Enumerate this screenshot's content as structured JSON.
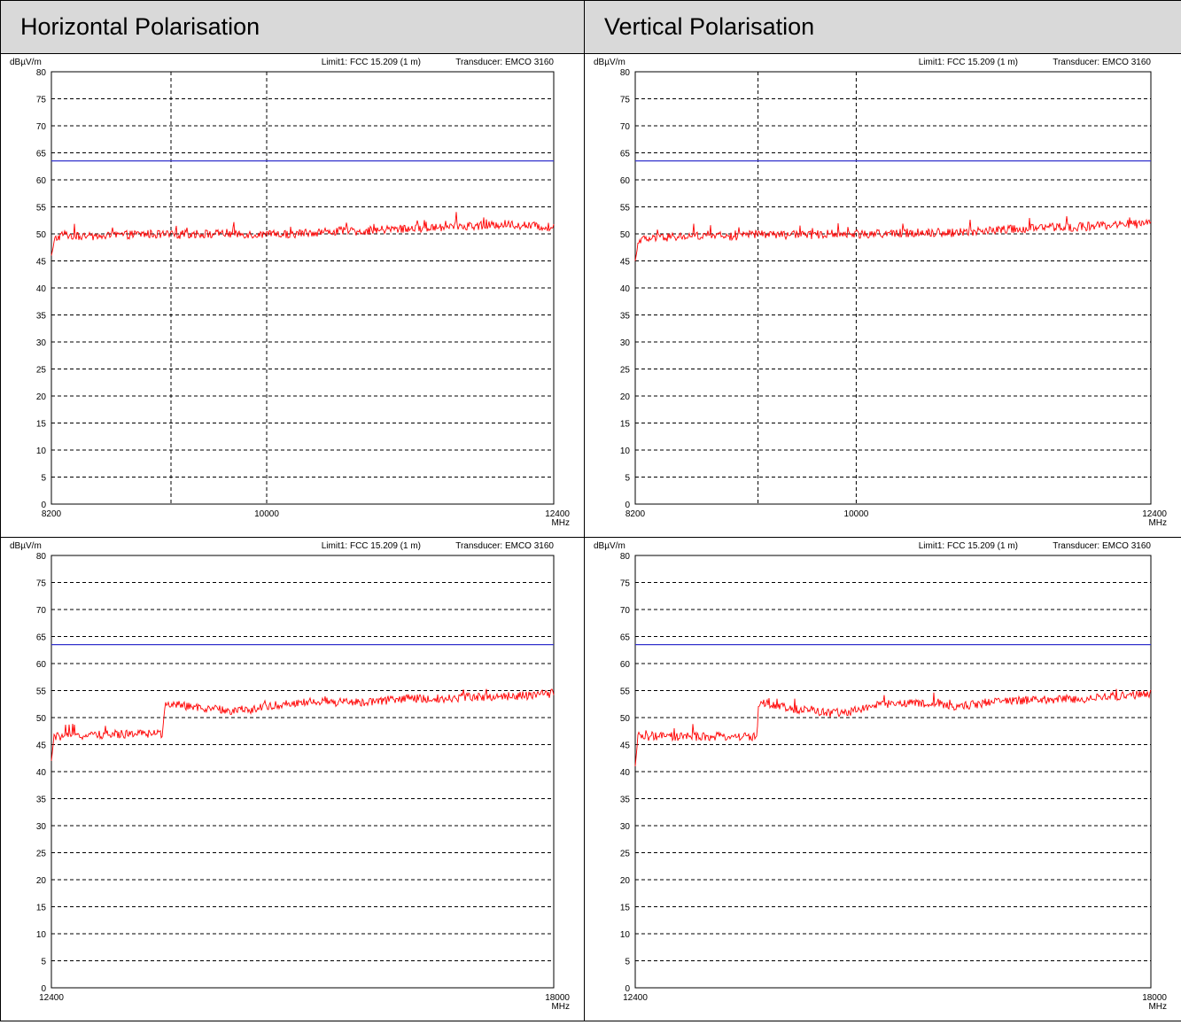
{
  "headers": {
    "horizontal": "Horizontal Polarisation",
    "vertical": "Vertical Polarisation"
  },
  "colors": {
    "trace": "#ff0000",
    "limit": "#3333cc",
    "grid": "#000000",
    "header_bg": "#d9d9d9"
  },
  "chart_data": [
    {
      "id": "h-low",
      "type": "line",
      "polarisation": "Horizontal",
      "ylabel": "dBµV/m",
      "xunit": "MHz",
      "limit_label": "Limit1: FCC 15.209 (1 m)",
      "transducer_label": "Transducer: EMCO 3160",
      "xlim": [
        8200,
        12400
      ],
      "ylim": [
        0,
        80
      ],
      "xticks": [
        "8200",
        "10000",
        "12400"
      ],
      "xgrid": [
        9200,
        10000
      ],
      "yticks": [
        0,
        5,
        10,
        15,
        20,
        25,
        30,
        35,
        40,
        45,
        50,
        55,
        60,
        65,
        70,
        75,
        80
      ],
      "limit_value": 63.5,
      "series": [
        {
          "x": [
            8200,
            8230,
            8300,
            8400,
            8600,
            8800,
            9000,
            9200,
            9400,
            9600,
            9800,
            10000,
            10200,
            10400,
            10600,
            10800,
            11000,
            11200,
            11400,
            11600,
            11800,
            12000,
            12200,
            12400
          ],
          "y": [
            46,
            49,
            50,
            49.5,
            49.5,
            49.8,
            50,
            49.8,
            50,
            50,
            50,
            49.8,
            50,
            50.3,
            50.5,
            50.5,
            50.8,
            51,
            51.2,
            51.5,
            51.5,
            51.8,
            51.5,
            51.2
          ]
        }
      ]
    },
    {
      "id": "v-low",
      "type": "line",
      "polarisation": "Vertical",
      "ylabel": "dBµV/m",
      "xunit": "MHz",
      "limit_label": "Limit1: FCC 15.209 (1 m)",
      "transducer_label": "Transducer: EMCO 3160",
      "xlim": [
        8200,
        12400
      ],
      "ylim": [
        0,
        80
      ],
      "xticks": [
        "8200",
        "10000",
        "12400"
      ],
      "xgrid": [
        9200,
        10000
      ],
      "yticks": [
        0,
        5,
        10,
        15,
        20,
        25,
        30,
        35,
        40,
        45,
        50,
        55,
        60,
        65,
        70,
        75,
        80
      ],
      "limit_value": 63.5,
      "series": [
        {
          "x": [
            8200,
            8230,
            8300,
            8400,
            8600,
            8800,
            9000,
            9200,
            9400,
            9600,
            9800,
            10000,
            10200,
            10400,
            10600,
            10800,
            11000,
            11200,
            11400,
            11600,
            11800,
            12000,
            12200,
            12400
          ],
          "y": [
            45,
            49,
            49,
            49.3,
            49.5,
            49.8,
            49.5,
            50,
            49.8,
            49.8,
            50,
            50,
            50,
            50.2,
            50.3,
            50.2,
            50.5,
            50.8,
            51,
            51.2,
            51.3,
            51.5,
            51.8,
            51.8
          ]
        }
      ]
    },
    {
      "id": "h-high",
      "type": "line",
      "polarisation": "Horizontal",
      "ylabel": "dBµV/m",
      "xunit": "MHz",
      "limit_label": "Limit1: FCC 15.209 (1 m)",
      "transducer_label": "Transducer: EMCO 3160",
      "xlim": [
        12400,
        18000
      ],
      "ylim": [
        0,
        80
      ],
      "xticks": [
        "12400",
        "18000"
      ],
      "xgrid": [],
      "yticks": [
        0,
        5,
        10,
        15,
        20,
        25,
        30,
        35,
        40,
        45,
        50,
        55,
        60,
        65,
        70,
        75,
        80
      ],
      "limit_value": 63.5,
      "series": [
        {
          "x": [
            12400,
            12430,
            12600,
            12800,
            13000,
            13200,
            13400,
            13640,
            13660,
            13800,
            14000,
            14200,
            14400,
            14600,
            14800,
            15000,
            15200,
            15400,
            15600,
            15800,
            16000,
            16200,
            16400,
            16600,
            16800,
            17000,
            17200,
            17400,
            17600,
            17800,
            18000
          ],
          "y": [
            42,
            46.5,
            46.5,
            46.8,
            46.8,
            47,
            47,
            47,
            52.5,
            52.5,
            51.8,
            51.5,
            51.3,
            51.5,
            52,
            52.5,
            52.8,
            53,
            52.8,
            52.8,
            53,
            53.2,
            53.5,
            53.5,
            53.5,
            53.8,
            53.8,
            54,
            54,
            54.2,
            54.5
          ]
        }
      ]
    },
    {
      "id": "v-high",
      "type": "line",
      "polarisation": "Vertical",
      "ylabel": "dBµV/m",
      "xunit": "MHz",
      "limit_label": "Limit1: FCC 15.209 (1 m)",
      "transducer_label": "Transducer: EMCO 3160",
      "xlim": [
        12400,
        18000
      ],
      "ylim": [
        0,
        80
      ],
      "xticks": [
        "12400",
        "18000"
      ],
      "xgrid": [],
      "yticks": [
        0,
        5,
        10,
        15,
        20,
        25,
        30,
        35,
        40,
        45,
        50,
        55,
        60,
        65,
        70,
        75,
        80
      ],
      "limit_value": 63.5,
      "series": [
        {
          "x": [
            12400,
            12430,
            12600,
            12800,
            13000,
            13200,
            13400,
            13720,
            13740,
            13900,
            14100,
            14300,
            14500,
            14700,
            14900,
            15100,
            15300,
            15500,
            15700,
            15900,
            16100,
            16300,
            16500,
            16700,
            16900,
            17100,
            17300,
            17500,
            17700,
            17900,
            18000
          ],
          "y": [
            41,
            46.5,
            46.5,
            46.5,
            46.5,
            46.5,
            46.5,
            46.5,
            52.5,
            52.5,
            51.5,
            51.5,
            50.8,
            51,
            51.8,
            52.5,
            52.8,
            52.5,
            52.5,
            52,
            52.5,
            53,
            53.2,
            53.2,
            53.3,
            53.5,
            53.5,
            53.8,
            54,
            54.2,
            54.5
          ]
        }
      ]
    }
  ]
}
